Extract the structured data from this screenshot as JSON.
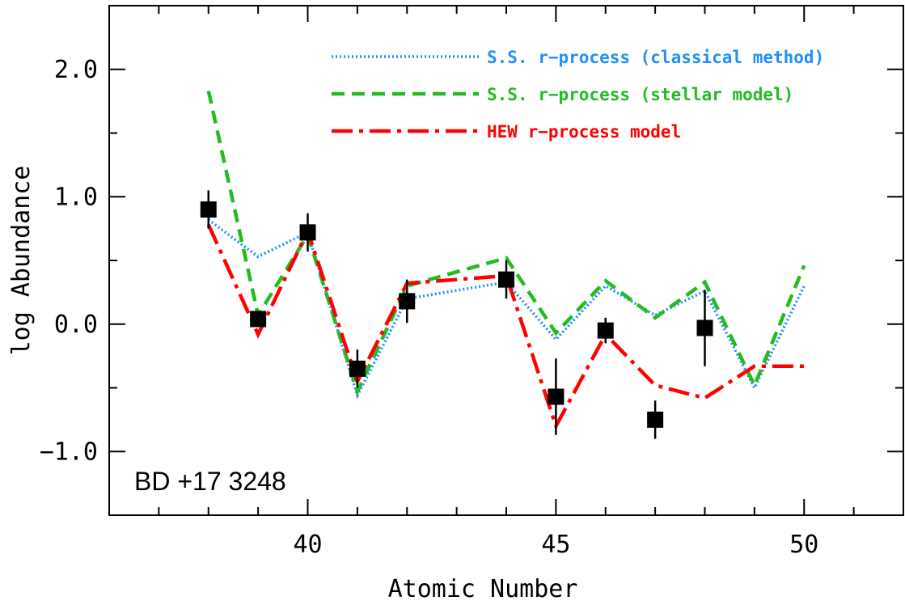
{
  "chart_data": {
    "type": "line",
    "xlabel": "Atomic Number",
    "ylabel": "log Abundance",
    "xlim": [
      36,
      52
    ],
    "ylim": [
      -1.5,
      2.5
    ],
    "x_ticks": [
      40,
      45,
      50
    ],
    "x_tick_labels": [
      "40",
      "45",
      "50"
    ],
    "y_ticks": [
      -1.0,
      0.0,
      1.0,
      2.0
    ],
    "y_tick_labels": [
      "−1.0",
      "0.0",
      "1.0",
      "2.0"
    ],
    "annotation": "BD +17 3248",
    "legend_position": "top-right",
    "series": [
      {
        "name": "S.S. r−process (classical method)",
        "style": "dotted",
        "color": "#1e90ff",
        "x": [
          38,
          39,
          40,
          41,
          42,
          44,
          45,
          46,
          47,
          48,
          49,
          50
        ],
        "y": [
          0.82,
          0.53,
          0.72,
          -0.56,
          0.2,
          0.33,
          -0.12,
          0.3,
          0.07,
          0.26,
          -0.5,
          0.3
        ]
      },
      {
        "name": "S.S. r−process (stellar model)",
        "style": "dashed",
        "color": "#22bb22",
        "x": [
          38,
          39,
          40,
          41,
          42,
          44,
          45,
          46,
          47,
          48,
          49,
          50
        ],
        "y": [
          1.83,
          0.07,
          0.7,
          -0.53,
          0.3,
          0.52,
          -0.07,
          0.34,
          0.05,
          0.33,
          -0.48,
          0.46
        ]
      },
      {
        "name": "HEW r−process model",
        "style": "dashdot",
        "color": "#ff0000",
        "x": [
          38,
          39,
          40,
          41,
          42,
          44,
          45,
          46,
          47,
          48,
          49,
          50
        ],
        "y": [
          0.78,
          -0.08,
          0.73,
          -0.45,
          0.32,
          0.38,
          -0.8,
          -0.08,
          -0.48,
          -0.58,
          -0.33,
          -0.33
        ]
      }
    ],
    "observed": {
      "x": [
        38,
        39,
        40,
        41,
        42,
        44,
        45,
        46,
        47,
        48
      ],
      "y": [
        0.9,
        0.04,
        0.72,
        -0.35,
        0.18,
        0.35,
        -0.57,
        -0.05,
        -0.75,
        -0.03
      ],
      "err": [
        0.15,
        0.05,
        0.15,
        0.15,
        0.17,
        0.15,
        0.3,
        0.1,
        0.15,
        0.3
      ]
    }
  }
}
